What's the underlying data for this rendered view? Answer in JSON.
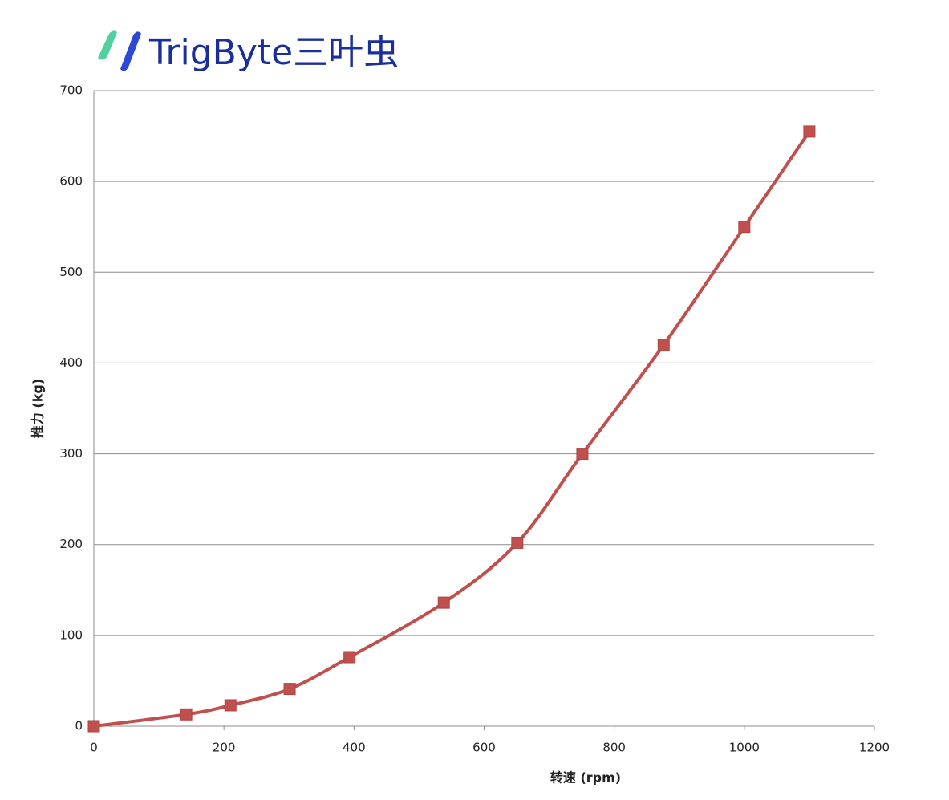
{
  "logo": {
    "text": "TrigByte三叶虫"
  },
  "chart_data": {
    "type": "line",
    "x_label": "转速 (rpm)",
    "y_label": "推力 (kg)",
    "x": [
      0,
      142,
      210,
      301,
      393,
      538,
      651,
      751,
      876,
      1000,
      1100
    ],
    "series": [
      {
        "color": "#c0504d",
        "values": [
          0,
          13,
          23,
          41,
          76,
          136,
          202,
          300,
          420,
          550,
          655
        ]
      }
    ],
    "xlim": [
      0,
      1200
    ],
    "xticks": [
      0,
      200,
      400,
      600,
      800,
      1000,
      1200
    ],
    "ylim": [
      0,
      700
    ],
    "yticks": [
      0,
      100,
      200,
      300,
      400,
      500,
      600,
      700
    ],
    "grid": true,
    "marker": "square",
    "smooth": true
  }
}
